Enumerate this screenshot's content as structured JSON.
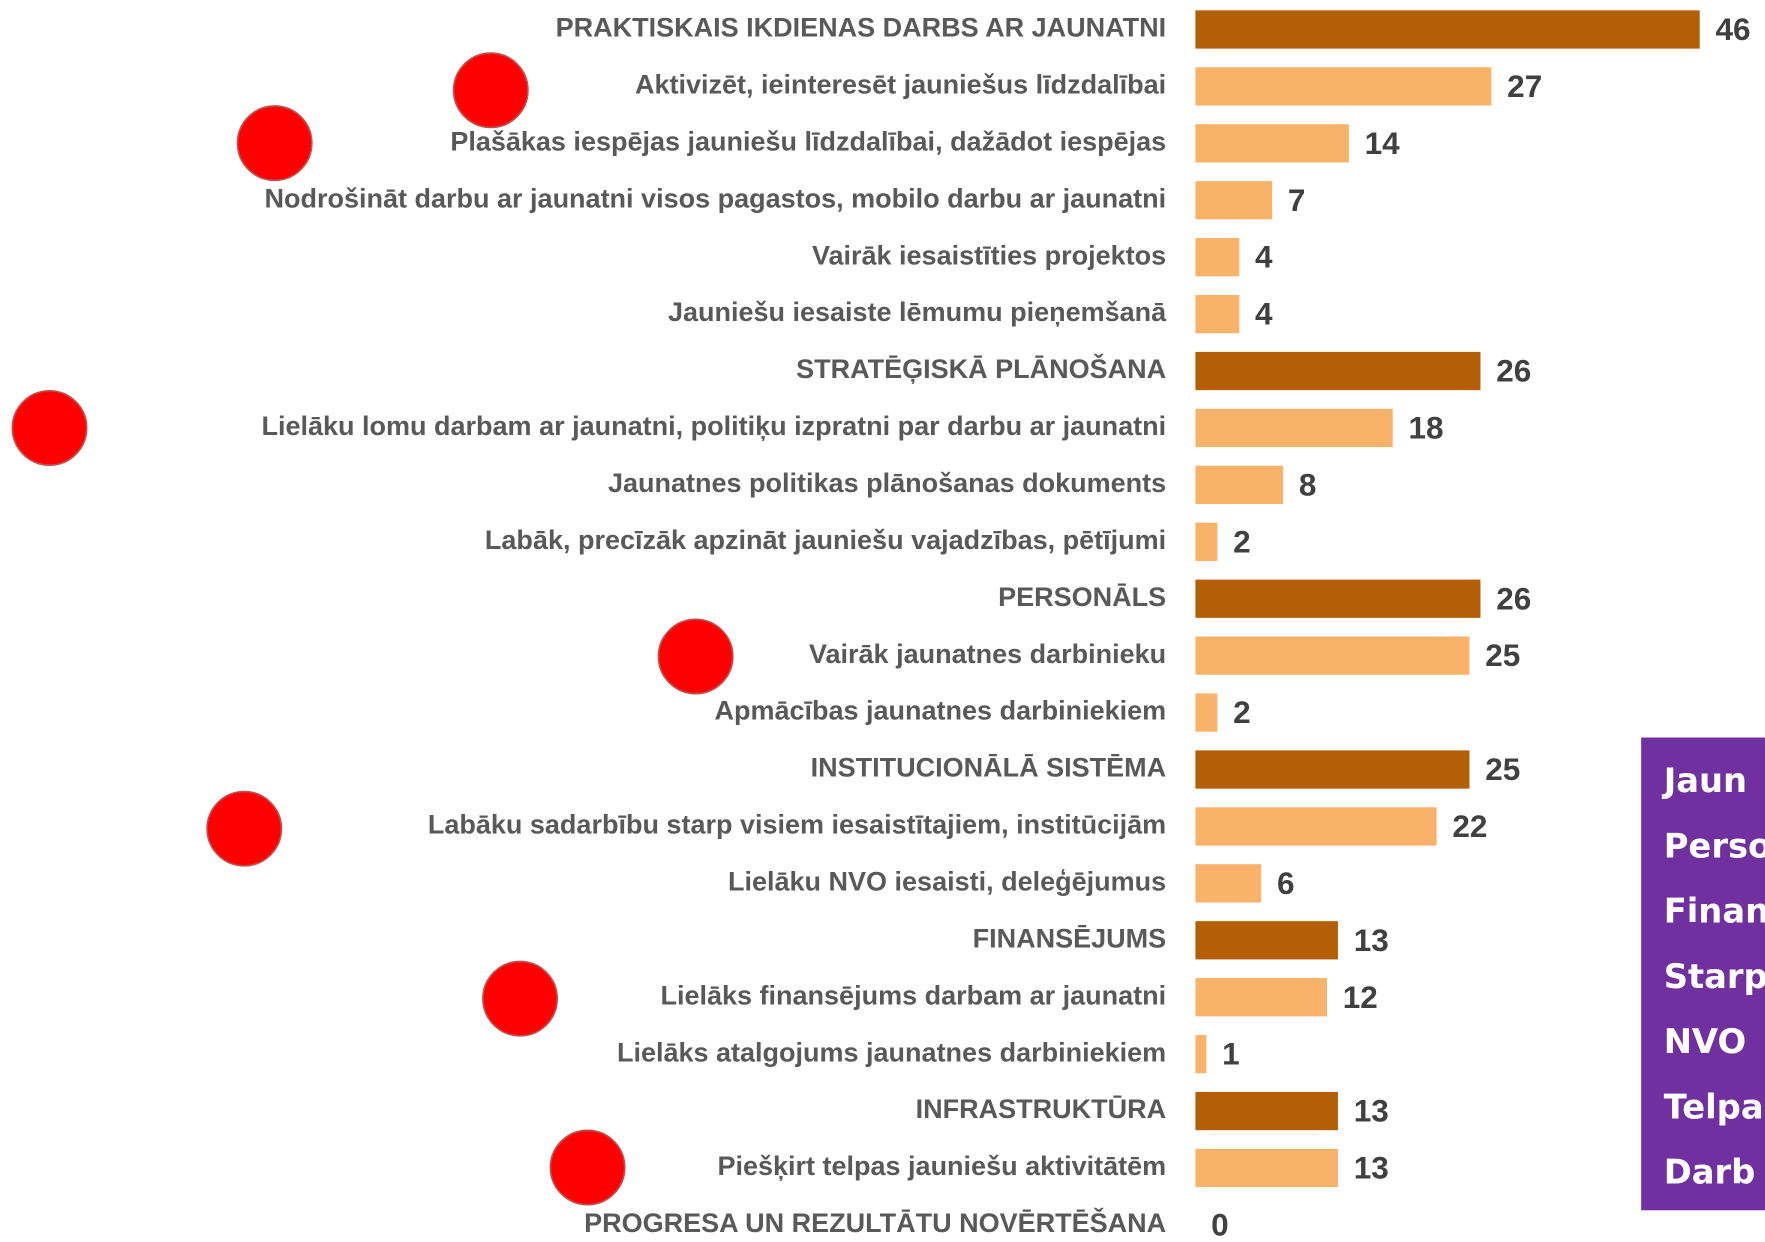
{
  "chart_data": {
    "type": "bar",
    "orientation": "horizontal",
    "categories": [
      "PRAKTISKAIS IKDIENAS DARBS AR JAUNATNI",
      "Aktivizēt, ieinteresēt jauniešus līdzdalībai",
      "Plašākas iespējas jauniešu līdzdalībai, dažādot iespējas",
      "Nodrošināt darbu ar jaunatni visos pagastos, mobilo darbu ar jaunatni",
      "Vairāk iesaistīties projektos",
      "Jauniešu iesaiste lēmumu pieņemšanā",
      "STRATĒĢISKĀ PLĀNOŠANA",
      "Lielāku lomu darbam ar jaunatni, politiķu izpratni par darbu ar jaunatni",
      "Jaunatnes politikas plānošanas dokuments",
      "Labāk, precīzāk apzināt jauniešu vajadzības, pētījumi",
      "PERSONĀLS",
      "Vairāk jaunatnes darbinieku",
      "Apmācības jaunatnes darbiniekiem",
      "INSTITUCIONĀLĀ SISTĒMA",
      "Labāku sadarbību starp visiem iesaistītajiem, institūcijām",
      "Lielāku NVO iesaisti, deleģējumus",
      "FINANSĒJUMS",
      "Lielāks finansējums darbam ar jaunatni",
      "Lielāks atalgojums jaunatnes darbiniekiem",
      "INFRASTRUKTŪRA",
      "Piešķirt telpas jauniešu aktivitātēm",
      "PROGRESA UN REZULTĀTU NOVĒRTĒŠANA"
    ],
    "values": [
      46,
      27,
      14,
      7,
      4,
      4,
      26,
      18,
      8,
      2,
      26,
      25,
      2,
      25,
      22,
      6,
      13,
      12,
      1,
      13,
      13,
      0
    ],
    "colors": [
      "#B45F06",
      "#F8B26A",
      "#F8B26A",
      "#F8B26A",
      "#F8B26A",
      "#F8B26A",
      "#B45F06",
      "#F8B26A",
      "#F8B26A",
      "#F8B26A",
      "#B45F06",
      "#F8B26A",
      "#F8B26A",
      "#B45F06",
      "#F8B26A",
      "#F8B26A",
      "#B45F06",
      "#F8B26A",
      "#F8B26A",
      "#B45F06",
      "#F8B26A",
      "#B45F06"
    ],
    "xlim": [
      0,
      46
    ]
  },
  "note": {
    "lines": [
      "Jaun",
      "Perso",
      "Finan",
      "Starp",
      "NVO",
      "Telpa",
      "Darb"
    ]
  }
}
